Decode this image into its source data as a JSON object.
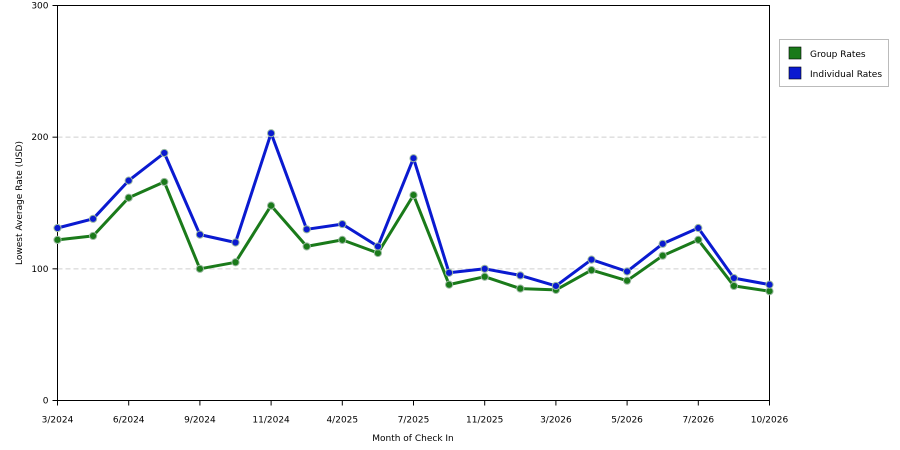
{
  "chart_data": {
    "type": "line",
    "xlabel": "Month of Check In",
    "ylabel": "Lowest Average Rate (USD)",
    "ylim": [
      0,
      300
    ],
    "yticks": [
      0,
      100,
      200,
      300
    ],
    "grid": "horizontal dashed at 100 and 200",
    "legend_placement": "right",
    "x_tick_labels": [
      "3/2024",
      "6/2024",
      "9/2024",
      "11/2024",
      "4/2025",
      "7/2025",
      "11/2025",
      "3/2026",
      "5/2026",
      "7/2026",
      "10/2026"
    ],
    "series": [
      {
        "name": "Group Rates",
        "color": "#1a7a1a",
        "values": [
          122,
          125,
          154,
          166,
          100,
          105,
          148,
          117,
          122,
          112,
          156,
          88,
          94,
          85,
          84,
          99,
          91,
          110,
          122,
          87,
          83
        ]
      },
      {
        "name": "Individual Rates",
        "color": "#0a1ad0",
        "values": [
          131,
          138,
          167,
          188,
          126,
          120,
          203,
          130,
          134,
          117,
          184,
          97,
          100,
          95,
          87,
          107,
          98,
          119,
          131,
          93,
          88
        ]
      }
    ]
  }
}
